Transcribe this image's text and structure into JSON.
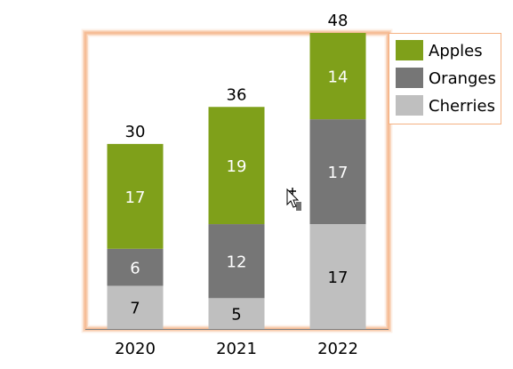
{
  "chart_data": {
    "type": "bar",
    "stacked": true,
    "categories": [
      "2020",
      "2021",
      "2022"
    ],
    "series": [
      {
        "name": "Cherries",
        "color": "#bfbfbf",
        "label_color": "#000000",
        "values": [
          7,
          5,
          17
        ]
      },
      {
        "name": "Oranges",
        "color": "#767676",
        "label_color": "#ffffff",
        "values": [
          6,
          12,
          17
        ]
      },
      {
        "name": "Apples",
        "color": "#7fa01a",
        "label_color": "#ffffff",
        "values": [
          17,
          19,
          14
        ]
      }
    ],
    "totals": [
      30,
      36,
      48
    ],
    "legend_order": [
      "Apples",
      "Oranges",
      "Cherries"
    ],
    "ylim": [
      0,
      48
    ],
    "grid": false,
    "legend_position": "top-right",
    "plot_border_color": "#f4b183"
  },
  "cursor_icon": "move-cursor-icon"
}
